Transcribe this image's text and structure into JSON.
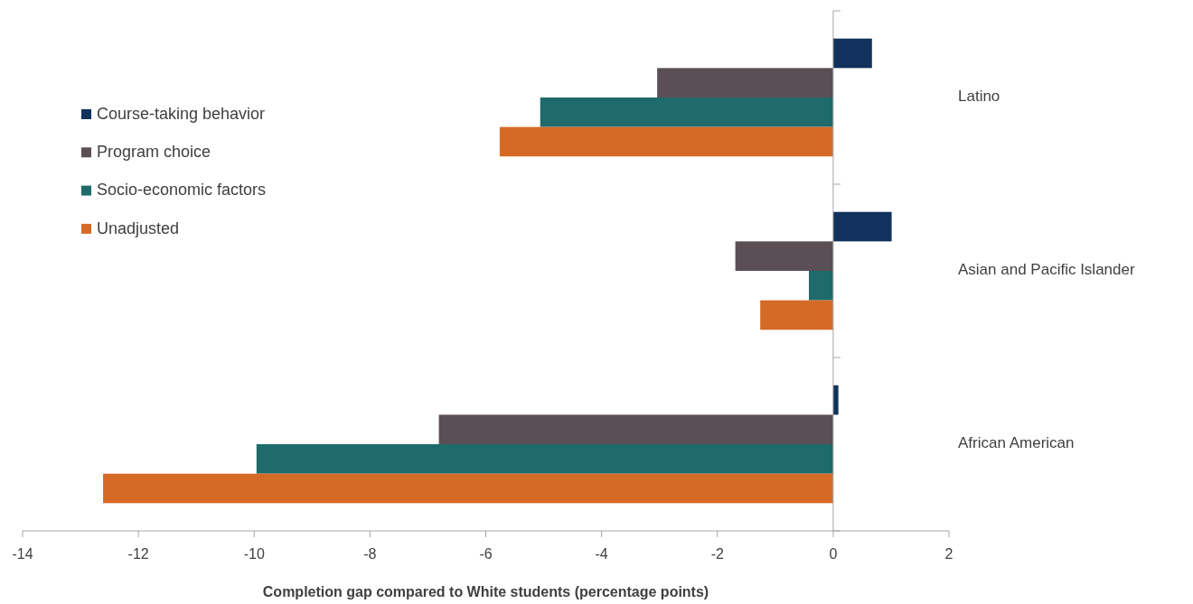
{
  "chart_data": {
    "type": "bar",
    "orientation": "horizontal",
    "xlabel": "Completion gap compared to White students (percentage points)",
    "categories": [
      "Latino",
      "Asian and Pacific Islander",
      "African American"
    ],
    "series": [
      {
        "name": "Course-taking behavior",
        "color": "#10325c",
        "values": [
          0.67,
          1.01,
          0.09
        ]
      },
      {
        "name": "Program choice",
        "color": "#5a4f55",
        "values": [
          -3.04,
          -1.69,
          -6.81
        ]
      },
      {
        "name": "Socio-economic factors",
        "color": "#1f6b6b",
        "values": [
          -5.06,
          -0.42,
          -9.96
        ]
      },
      {
        "name": "Unadjusted",
        "color": "#d56a27",
        "values": [
          -5.76,
          -1.26,
          -12.61
        ]
      }
    ],
    "xlim": [
      -14,
      2
    ],
    "xticks": [
      -14,
      -12,
      -10,
      -8,
      -6,
      -4,
      -2,
      0,
      2
    ],
    "legend": "top left"
  }
}
